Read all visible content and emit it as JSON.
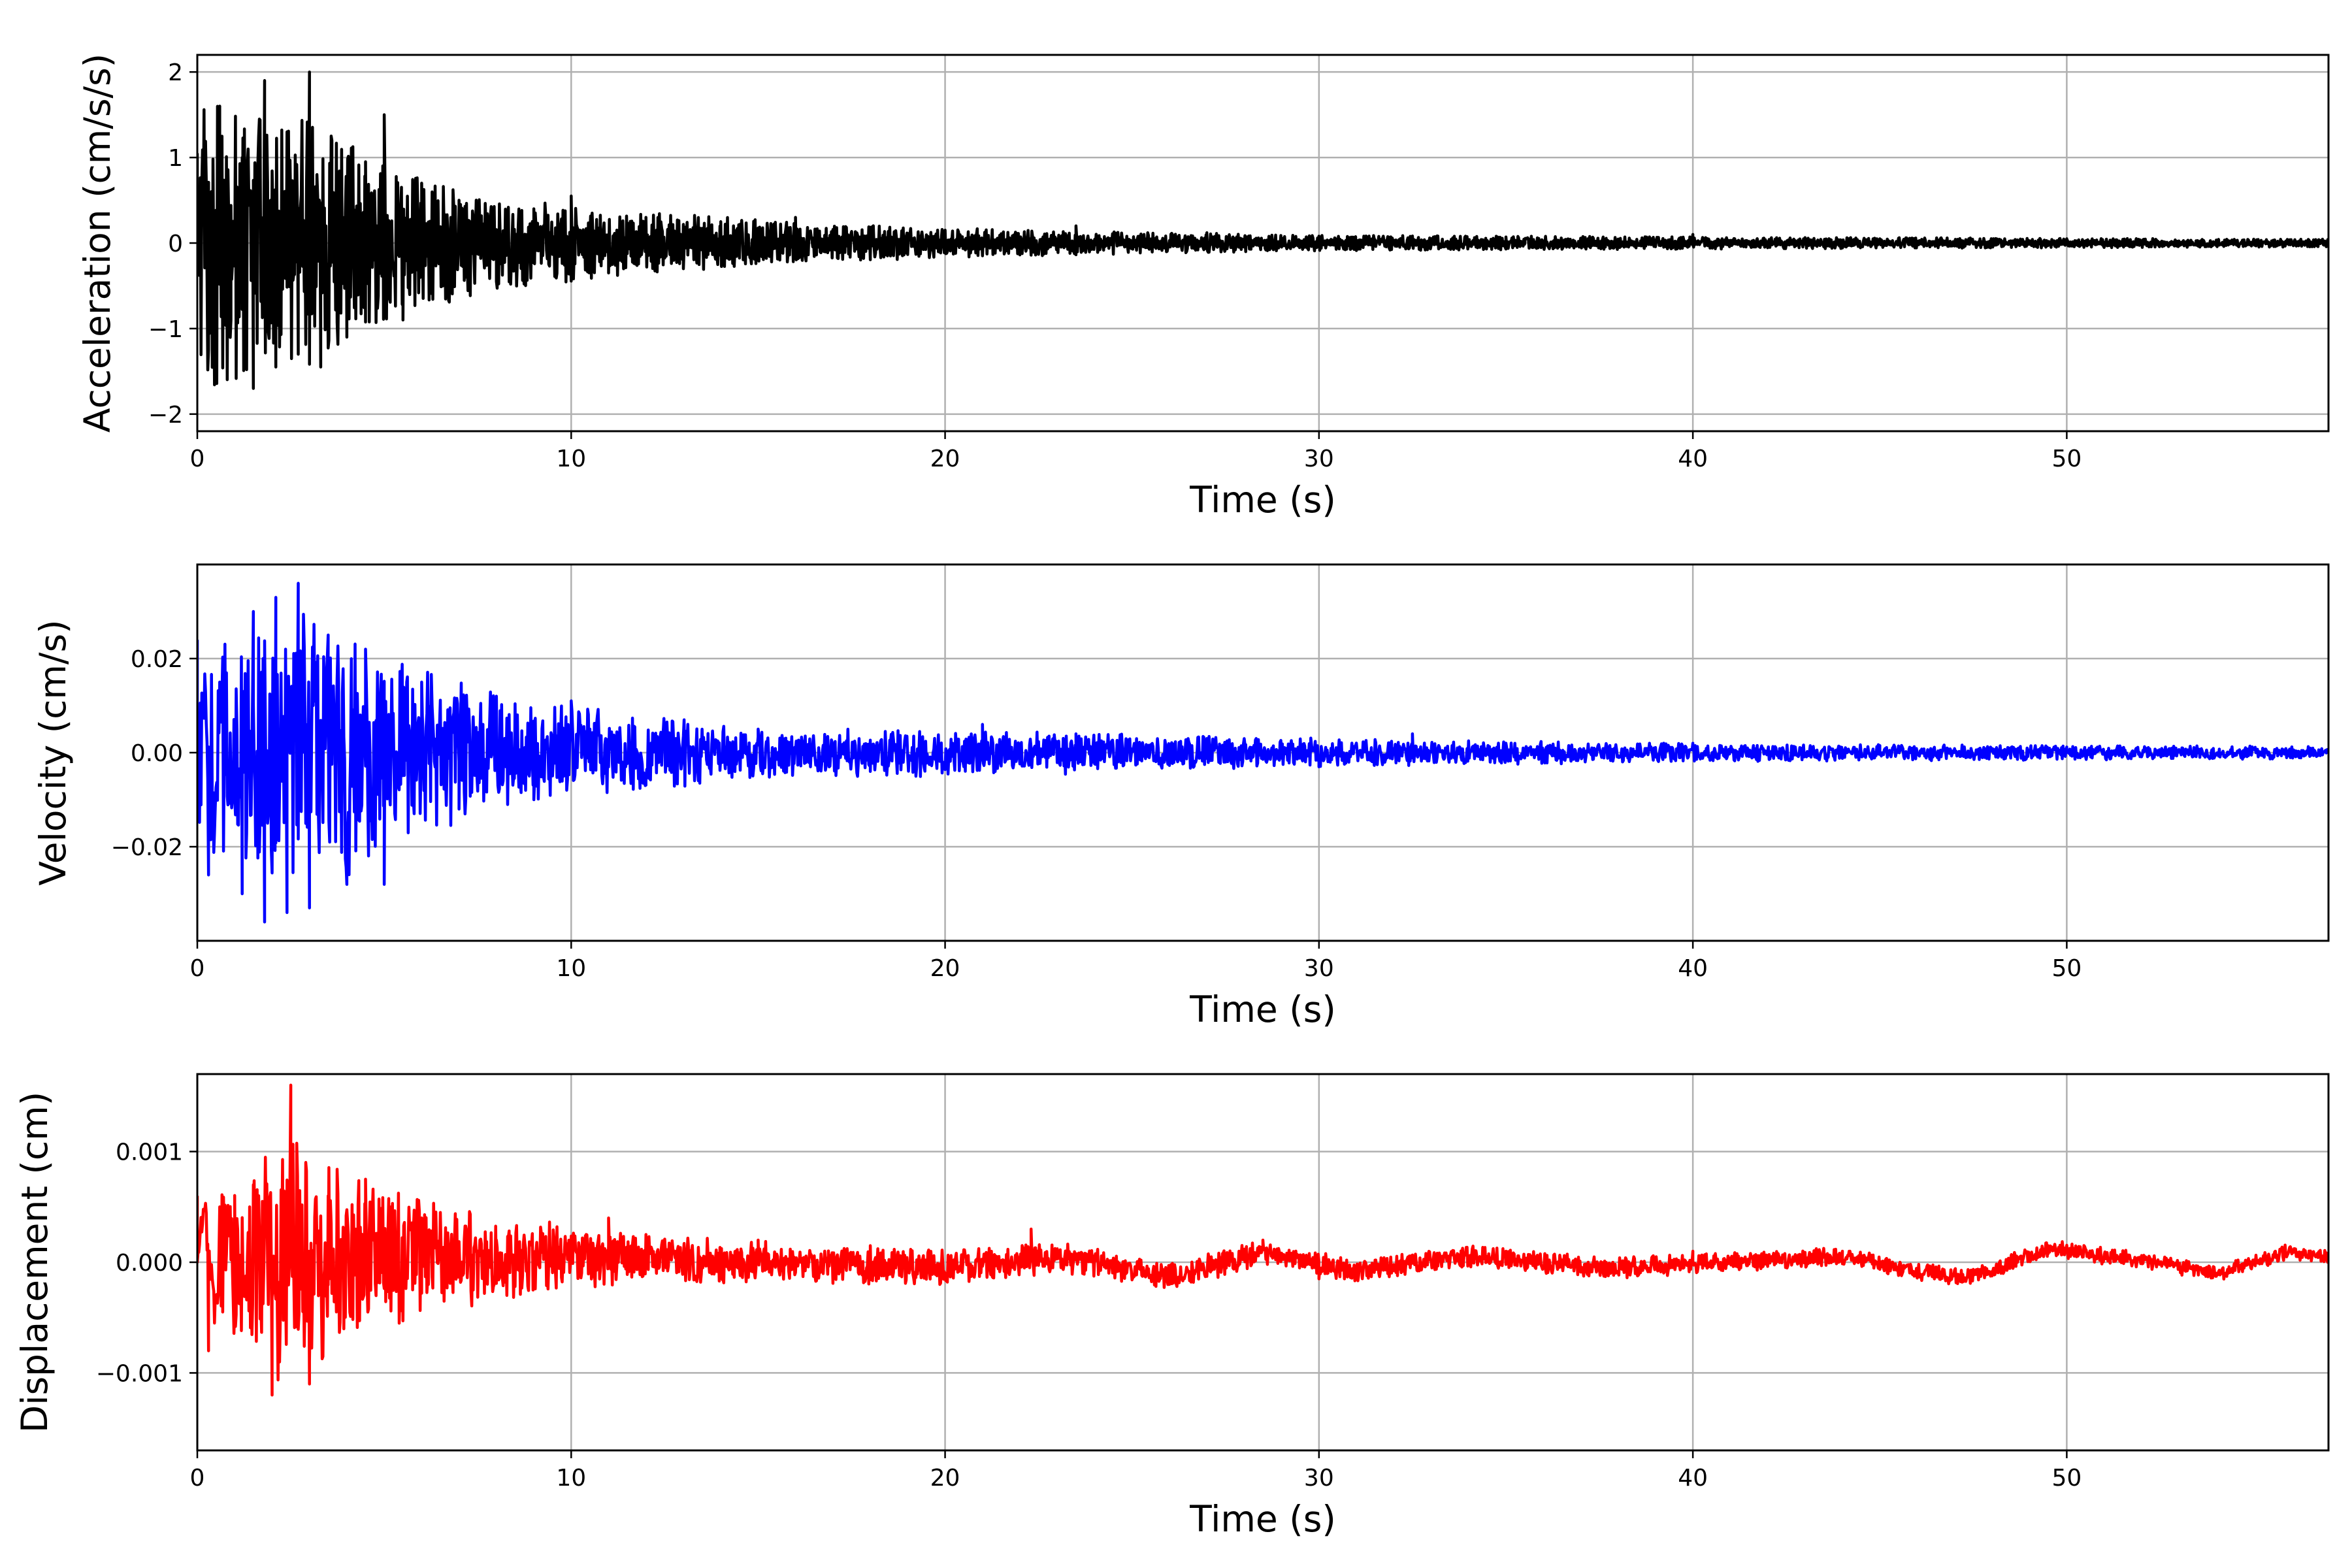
{
  "chart_data": [
    {
      "type": "line",
      "title": "",
      "xlabel": "Time (s)",
      "ylabel": "Acceleration (cm/s/s)",
      "xlim": [
        0,
        57
      ],
      "ylim": [
        -2.2,
        2.2
      ],
      "xticks": [
        0,
        10,
        20,
        30,
        40,
        50
      ],
      "yticks": [
        -2,
        -1,
        0,
        1,
        2
      ],
      "ytick_labels": [
        "−2",
        "−1",
        "0",
        "1",
        "2"
      ],
      "grid": true,
      "color": "#000000",
      "peak": 2.0,
      "envelope": [
        [
          0,
          1.9
        ],
        [
          3,
          1.6
        ],
        [
          5,
          1.0
        ],
        [
          8,
          0.6
        ],
        [
          10,
          0.5
        ],
        [
          16,
          0.26
        ],
        [
          22,
          0.17
        ],
        [
          30,
          0.1
        ],
        [
          40,
          0.08
        ],
        [
          57,
          0.05
        ]
      ],
      "series": [
        {
          "x": [
            0,
            0.3,
            0.6,
            0.9,
            1.2,
            1.5,
            1.8,
            2.1,
            2.4,
            2.7,
            3.0,
            3.3,
            3.6,
            4.0,
            4.5,
            5.0,
            5.5,
            6.0,
            7.0,
            8.0,
            9.0,
            10.0,
            11.0,
            12.0,
            13.0,
            14.0,
            16.0,
            18.0,
            20.0,
            23.5,
            27.0,
            30.0,
            35.0,
            40.0,
            45.0,
            50.0,
            57.0
          ],
          "y": [
            1.05,
            -1.25,
            1.6,
            -0.9,
            1.0,
            -1.7,
            1.9,
            -1.45,
            1.3,
            -1.3,
            2.0,
            -1.45,
            1.2,
            -1.1,
            0.95,
            1.5,
            -0.9,
            0.7,
            0.5,
            -0.45,
            0.4,
            0.55,
            -0.35,
            0.3,
            -0.3,
            0.25,
            0.3,
            -0.15,
            0.15,
            0.2,
            0.12,
            0.08,
            0.07,
            0.1,
            0.05,
            0.05,
            0.02
          ]
        }
      ]
    },
    {
      "type": "line",
      "title": "",
      "xlabel": "Time (s)",
      "ylabel": "Velocity (cm/s)",
      "xlim": [
        0,
        57
      ],
      "ylim": [
        -0.04,
        0.04
      ],
      "xticks": [
        0,
        10,
        20,
        30,
        40,
        50
      ],
      "yticks": [
        -0.02,
        0.0,
        0.02
      ],
      "ytick_labels": [
        "−0.02",
        "0.00",
        "0.02"
      ],
      "grid": true,
      "color": "#0000ff",
      "peak": 0.036,
      "envelope": [
        [
          0,
          0.025
        ],
        [
          2,
          0.036
        ],
        [
          3,
          0.036
        ],
        [
          5,
          0.024
        ],
        [
          8,
          0.014
        ],
        [
          10,
          0.011
        ],
        [
          15,
          0.006
        ],
        [
          22,
          0.0055
        ],
        [
          30,
          0.0035
        ],
        [
          40,
          0.0022
        ],
        [
          57,
          0.0015
        ]
      ],
      "series": [
        {
          "x": [
            0,
            0.3,
            0.6,
            1.2,
            1.5,
            1.8,
            2.1,
            2.4,
            2.7,
            3.0,
            3.5,
            4.0,
            4.5,
            5.0,
            6.0,
            7.0,
            8.0,
            9.0,
            10.0,
            12.0,
            15.0,
            18.0,
            21.0,
            23.5,
            27.0,
            30.0,
            32.5,
            35.0,
            40.0,
            45.0,
            50.0,
            57.0
          ],
          "y": [
            0.024,
            -0.026,
            0.015,
            -0.03,
            0.03,
            -0.036,
            0.033,
            -0.034,
            0.036,
            -0.033,
            0.025,
            -0.028,
            0.022,
            -0.028,
            0.015,
            -0.012,
            0.012,
            -0.01,
            0.011,
            -0.006,
            0.005,
            -0.004,
            0.006,
            0.004,
            0.003,
            -0.003,
            0.004,
            0.002,
            0.002,
            0.0015,
            0.0012,
            0.0005
          ]
        }
      ]
    },
    {
      "type": "line",
      "title": "",
      "xlabel": "Time (s)",
      "ylabel": "Displacement (cm)",
      "xlim": [
        0,
        57
      ],
      "ylim": [
        -0.0017,
        0.0017
      ],
      "xticks": [
        0,
        10,
        20,
        30,
        40,
        50
      ],
      "yticks": [
        -0.001,
        0.0,
        0.001
      ],
      "ytick_labels": [
        "−0.001",
        "0.000",
        "0.001"
      ],
      "grid": true,
      "color": "#ff0000",
      "peak": 0.0016,
      "envelope": [
        [
          0,
          0.0006
        ],
        [
          2,
          0.0012
        ],
        [
          2.5,
          0.0016
        ],
        [
          3,
          0.0011
        ],
        [
          5,
          0.00075
        ],
        [
          8,
          0.00045
        ],
        [
          12,
          0.00025
        ],
        [
          20,
          0.00018
        ],
        [
          30,
          0.00012
        ],
        [
          57,
          8e-05
        ]
      ],
      "baseline": [
        [
          0,
          0
        ],
        [
          10,
          5e-05
        ],
        [
          15,
          0
        ],
        [
          20,
          -5e-05
        ],
        [
          23,
          5e-05
        ],
        [
          26,
          -0.00012
        ],
        [
          28.5,
          8e-05
        ],
        [
          31,
          -8e-05
        ],
        [
          34,
          5e-05
        ],
        [
          38,
          -5e-05
        ],
        [
          44,
          5e-05
        ],
        [
          47.2,
          -0.00015
        ],
        [
          49.5,
          0.00012
        ],
        [
          52,
          2e-05
        ],
        [
          54,
          -0.0001
        ],
        [
          56,
          0.0001
        ],
        [
          57,
          3e-05
        ]
      ],
      "series": [
        {
          "x": [
            0,
            0.3,
            0.6,
            1.0,
            1.5,
            2.0,
            2.5,
            3.0,
            3.5,
            4.5,
            6.0,
            8.0,
            10.0,
            11.0,
            12.0,
            15.0,
            18.0,
            20.0,
            22.3,
            26.0,
            28.5,
            30.0,
            35.0,
            40.0,
            44.0,
            47.2,
            49.5,
            52.0,
            54.0,
            56.0,
            57.0
          ],
          "y": [
            0.0006,
            -0.0008,
            0.0005,
            -0.0004,
            0.0007,
            -0.0012,
            0.0016,
            -0.0011,
            0.0006,
            0.00075,
            0.0004,
            0.0002,
            0.0002,
            0.0004,
            0.00025,
            0.0002,
            0.00015,
            -0.0001,
            0.0003,
            -0.0002,
            0.0002,
            -0.00015,
            0.0001,
            0.0001,
            0.0001,
            -0.00018,
            0.00015,
            5e-05,
            -0.0001,
            0.00012,
            5e-05
          ]
        }
      ]
    }
  ]
}
